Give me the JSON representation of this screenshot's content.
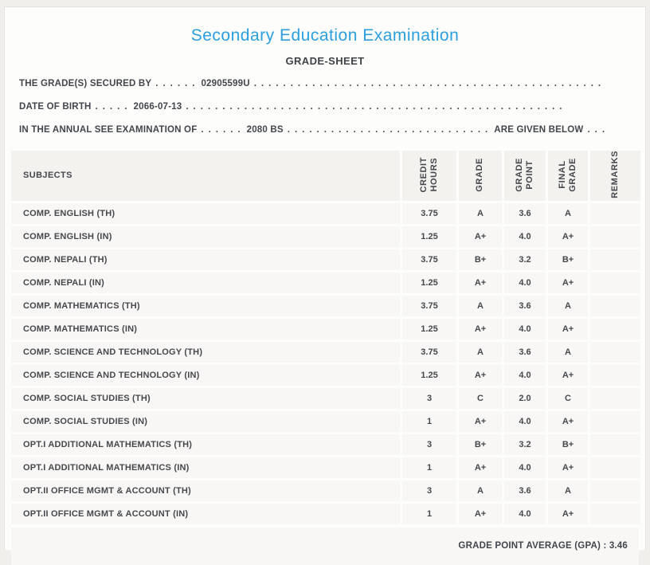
{
  "page": {
    "title": "Secondary Education Examination",
    "subtitle": "GRADE-SHEET"
  },
  "info": {
    "line1": {
      "label": "THE GRADE(S) SECURED BY",
      "dots_before": "......",
      "value": "02905599U",
      "dots_after": "................................................"
    },
    "line2": {
      "label": "DATE OF BIRTH",
      "dots_before": ".....",
      "value": "2066-07-13",
      "dots_after": "...................................................."
    },
    "line3": {
      "label": "IN THE ANNUAL SEE EXAMINATION OF",
      "dots_before": "......",
      "value": "2080 BS",
      "dots_mid": "............................",
      "suffix": "ARE GIVEN BELOW",
      "dots_end": "..."
    }
  },
  "table": {
    "columns": {
      "subjects": "SUBJECTS",
      "credit_hours": "CREDIT\nHOURS",
      "grade": "GRADE",
      "grade_point": "GRADE\nPOINT",
      "final_grade": "FINAL\nGRADE",
      "remarks": "REMARKS"
    },
    "rows": [
      {
        "subject": "COMP. ENGLISH (TH)",
        "credit_hours": "3.75",
        "grade": "A",
        "grade_point": "3.6",
        "final_grade": "A",
        "remarks": ""
      },
      {
        "subject": "COMP. ENGLISH (IN)",
        "credit_hours": "1.25",
        "grade": "A+",
        "grade_point": "4.0",
        "final_grade": "A+",
        "remarks": ""
      },
      {
        "subject": "COMP. NEPALI (TH)",
        "credit_hours": "3.75",
        "grade": "B+",
        "grade_point": "3.2",
        "final_grade": "B+",
        "remarks": ""
      },
      {
        "subject": "COMP. NEPALI (IN)",
        "credit_hours": "1.25",
        "grade": "A+",
        "grade_point": "4.0",
        "final_grade": "A+",
        "remarks": ""
      },
      {
        "subject": "COMP. MATHEMATICS (TH)",
        "credit_hours": "3.75",
        "grade": "A",
        "grade_point": "3.6",
        "final_grade": "A",
        "remarks": ""
      },
      {
        "subject": "COMP. MATHEMATICS (IN)",
        "credit_hours": "1.25",
        "grade": "A+",
        "grade_point": "4.0",
        "final_grade": "A+",
        "remarks": ""
      },
      {
        "subject": "COMP. SCIENCE AND TECHNOLOGY (TH)",
        "credit_hours": "3.75",
        "grade": "A",
        "grade_point": "3.6",
        "final_grade": "A",
        "remarks": ""
      },
      {
        "subject": "COMP. SCIENCE AND TECHNOLOGY (IN)",
        "credit_hours": "1.25",
        "grade": "A+",
        "grade_point": "4.0",
        "final_grade": "A+",
        "remarks": ""
      },
      {
        "subject": "COMP. SOCIAL STUDIES (TH)",
        "credit_hours": "3",
        "grade": "C",
        "grade_point": "2.0",
        "final_grade": "C",
        "remarks": ""
      },
      {
        "subject": "COMP. SOCIAL STUDIES (IN)",
        "credit_hours": "1",
        "grade": "A+",
        "grade_point": "4.0",
        "final_grade": "A+",
        "remarks": ""
      },
      {
        "subject": "OPT.I ADDITIONAL MATHEMATICS (TH)",
        "credit_hours": "3",
        "grade": "B+",
        "grade_point": "3.2",
        "final_grade": "B+",
        "remarks": ""
      },
      {
        "subject": "OPT.I ADDITIONAL MATHEMATICS (IN)",
        "credit_hours": "1",
        "grade": "A+",
        "grade_point": "4.0",
        "final_grade": "A+",
        "remarks": ""
      },
      {
        "subject": "OPT.II OFFICE MGMT & ACCOUNT (TH)",
        "credit_hours": "3",
        "grade": "A",
        "grade_point": "3.6",
        "final_grade": "A",
        "remarks": ""
      },
      {
        "subject": "OPT.II OFFICE MGMT & ACCOUNT (IN)",
        "credit_hours": "1",
        "grade": "A+",
        "grade_point": "4.0",
        "final_grade": "A+",
        "remarks": ""
      }
    ]
  },
  "footer": {
    "gpa_text": "GRADE POINT AVERAGE (GPA) : 3.46"
  },
  "colors": {
    "accent_blue": "#2b9fe1",
    "body_text": "#42464c",
    "row_bg": "#f8f7f5",
    "header_bg": "#f4f2ef",
    "page_bg": "#f0efec",
    "card_bg": "#fdfdfc"
  }
}
